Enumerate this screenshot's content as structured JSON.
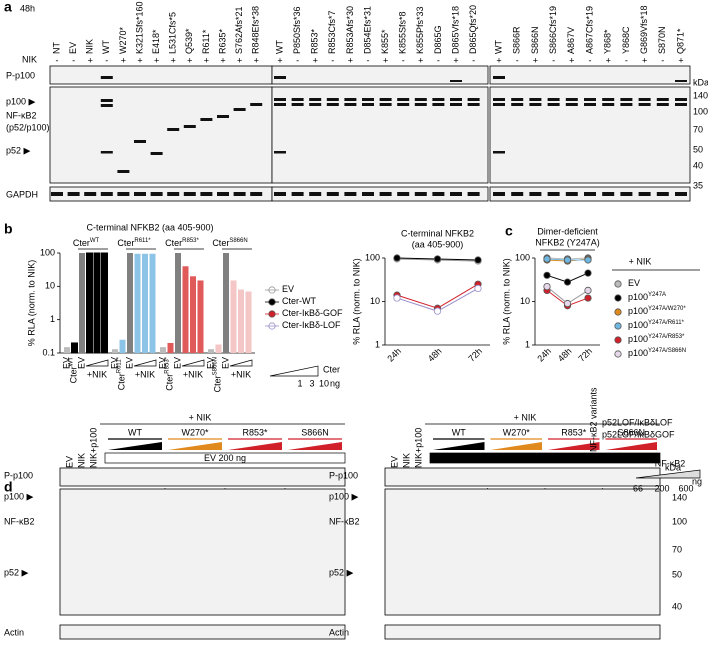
{
  "panel_labels": [
    "a",
    "b",
    "c",
    "d"
  ],
  "a": {
    "timepoint": "48h",
    "nik_label": "NIK",
    "groups": [
      {
        "lanes": [
          {
            "label": "NT",
            "color": "#000000"
          },
          {
            "label": "EV",
            "color": "#000000"
          },
          {
            "label": "NIK",
            "color": "#000000"
          },
          {
            "label": "WT",
            "color": "#000000"
          },
          {
            "label": "W270*",
            "color": "#e08a1e"
          },
          {
            "label": "K321Sfs*160",
            "color": "#e08a1e"
          },
          {
            "label": "E418*",
            "color": "#1fb3c9"
          },
          {
            "label": "L531Cfs*5",
            "color": "#1fb3c9"
          },
          {
            "label": "Q539*",
            "color": "#1fb3c9"
          },
          {
            "label": "R611*",
            "color": "#1fb3c9"
          },
          {
            "label": "R635*",
            "color": "#1fb3c9"
          },
          {
            "label": "S762Afs*21",
            "color": "#d0212a"
          },
          {
            "label": "R848Efs*38",
            "color": "#d0212a"
          }
        ],
        "nik": [
          "-",
          "-",
          "+",
          "-",
          "+",
          "+",
          "+",
          "+",
          "+",
          "+",
          "+",
          "+",
          "+"
        ]
      },
      {
        "lanes": [
          {
            "label": "WT",
            "color": "#000000"
          },
          {
            "label": "P850Sfs*36",
            "color": "#d0212a"
          },
          {
            "label": "R853*",
            "color": "#d0212a"
          },
          {
            "label": "R853Cfs*7",
            "color": "#d0212a"
          },
          {
            "label": "R853Afs*30",
            "color": "#d0212a"
          },
          {
            "label": "D854Efs*31",
            "color": "#d0212a"
          },
          {
            "label": "K855*",
            "color": "#d0212a"
          },
          {
            "label": "K855Sfs*8",
            "color": "#d0212a"
          },
          {
            "label": "K855Pfs*33",
            "color": "#d0212a"
          },
          {
            "label": "D865G",
            "color": "#d0212a"
          },
          {
            "label": "D865Vfs*18",
            "color": "#d0212a"
          },
          {
            "label": "D865Qfs*20",
            "color": "#d0212a"
          }
        ],
        "nik": [
          "+",
          "-",
          "+",
          "-",
          "+",
          "-",
          "+",
          "-",
          "+",
          "-",
          "+",
          "-"
        ]
      },
      {
        "lanes": [
          {
            "label": "WT",
            "color": "#000000"
          },
          {
            "label": "S866R",
            "color": "#d0212a"
          },
          {
            "label": "S866N",
            "color": "#d0212a"
          },
          {
            "label": "S866Cfs*19",
            "color": "#d0212a"
          },
          {
            "label": "A867V",
            "color": "#d0212a"
          },
          {
            "label": "A867Cfs*19",
            "color": "#d0212a"
          },
          {
            "label": "Y868*",
            "color": "#d0212a"
          },
          {
            "label": "Y868C",
            "color": "#d0212a"
          },
          {
            "label": "G869Vfs*18",
            "color": "#d0212a"
          },
          {
            "label": "S870N",
            "color": "#d0212a"
          },
          {
            "label": "Q871*",
            "color": "#d0212a"
          }
        ],
        "nik": [
          "+",
          "-",
          "+",
          "-",
          "+",
          "-",
          "+",
          "-",
          "+",
          "-",
          "+"
        ]
      }
    ],
    "rows": [
      "P-p100",
      "p100 ▶",
      "NF-κB2",
      "(p52/p100)",
      "p52 ▶",
      "GAPDH"
    ],
    "kda": "kDa",
    "markers": [
      140,
      100,
      70,
      50,
      40,
      35
    ]
  },
  "chart_data": [
    {
      "type": "bar",
      "title": "C-terminal NFKB2 (aa 405-900)",
      "ylabel": "% RLA (norm. to NIK)",
      "log": true,
      "ylim": [
        0.1,
        100
      ],
      "yticks": [
        0.1,
        1,
        10,
        100
      ],
      "groups": [
        {
          "name": "Cter",
          "sup": "WT",
          "color": "#000000"
        },
        {
          "name": "Cter",
          "sup": "R611*",
          "color": "#2aa3d8"
        },
        {
          "name": "Cter",
          "sup": "R853*",
          "color": "#d0212a"
        },
        {
          "name": "Cter",
          "sup": "S866N",
          "color": "#d0212a"
        }
      ],
      "group_label": "+NIK",
      "categories": [
        "EV",
        null,
        "EV",
        null,
        null,
        null,
        "EV",
        null,
        "EV",
        null,
        null,
        null,
        "EV",
        null,
        "EV",
        null,
        null,
        null,
        "EV",
        null,
        "EV",
        null,
        null,
        null
      ],
      "values": [
        0.15,
        0.2,
        100,
        100,
        100,
        100,
        0.13,
        0.25,
        100,
        95,
        95,
        95,
        0.15,
        0.2,
        100,
        40,
        20,
        15,
        0.13,
        0.18,
        100,
        15,
        8,
        7
      ],
      "colors": [
        "#bbbbbb",
        "#000000",
        "#808080",
        "#000000",
        "#000000",
        "#000000",
        "#bbbbbb",
        "#8cc4e8",
        "#808080",
        "#8cc4e8",
        "#8cc4e8",
        "#8cc4e8",
        "#bbbbbb",
        "#e05a5a",
        "#808080",
        "#e05a5a",
        "#e05a5a",
        "#e05a5a",
        "#bbbbbb",
        "#f5c6c6",
        "#808080",
        "#f5c6c6",
        "#f5c6c6",
        "#f5c6c6"
      ],
      "dose_legend": {
        "title": "Cter",
        "doses": [
          1,
          3,
          10
        ],
        "unit": "ng"
      }
    },
    {
      "type": "line",
      "title": "C-terminal NFKB2",
      "subtitle": "(aa 405-900)",
      "ylabel": "% RLA (norm. to NIK)",
      "log": true,
      "categories": [
        "24h",
        "48h",
        "72h"
      ],
      "ylim": [
        1,
        100
      ],
      "yticks": [
        1,
        10,
        100
      ],
      "series": [
        {
          "name": "EV",
          "color": "#999999",
          "open": true,
          "values": [
            95,
            90,
            85
          ]
        },
        {
          "name": "Cter-WT",
          "color": "#000000",
          "open": false,
          "values": [
            100,
            95,
            90
          ]
        },
        {
          "name": "Cter-IκBδ-GOF",
          "color": "#d0212a",
          "open": false,
          "values": [
            14,
            7,
            25
          ]
        },
        {
          "name": "Cter-IκBδ-LOF",
          "color": "#9b8fc8",
          "open": true,
          "values": [
            12,
            6,
            20
          ]
        }
      ]
    },
    {
      "type": "line",
      "title": "Dimer-deficient",
      "subtitle": "NFKB2 (Y247A)",
      "ylabel": "% RLA (norm. to NIK)",
      "log": true,
      "categories": [
        "24h",
        "48h",
        "72h"
      ],
      "ylim": [
        1,
        100
      ],
      "yticks": [
        1,
        10,
        100
      ],
      "legend_title": "+ NIK",
      "series": [
        {
          "name": "EV",
          "color": "#bbbbbb",
          "values": [
            100,
            95,
            100
          ]
        },
        {
          "name": "p100",
          "sup": "Y247A",
          "color": "#000000",
          "values": [
            40,
            28,
            45
          ]
        },
        {
          "name": "p100",
          "sup": "Y247A/W270*",
          "color": "#e08a1e",
          "values": [
            90,
            85,
            95
          ]
        },
        {
          "name": "p100",
          "sup": "Y247A/R611*",
          "color": "#6fb7e0",
          "values": [
            95,
            90,
            90
          ]
        },
        {
          "name": "p100",
          "sup": "Y247A/R853*",
          "color": "#d0212a",
          "values": [
            18,
            8,
            12
          ]
        },
        {
          "name": "p100",
          "sup": "Y247A/S866N",
          "color": "#e6d8ea",
          "values": [
            22,
            9,
            18
          ]
        }
      ]
    }
  ],
  "d": {
    "nik": "+ NIK",
    "lanes": [
      "EV",
      "NIK",
      "NIK+p100"
    ],
    "groups": [
      {
        "label": "WT",
        "color": "#000000"
      },
      {
        "label": "W270*",
        "color": "#e08a1e"
      },
      {
        "label": "R853*",
        "color": "#d0212a"
      },
      {
        "label": "S866N",
        "color": "#d0212a"
      }
    ],
    "left_box": "EV 200 ng",
    "right_box": "p100 200 ng",
    "rows": [
      "P-p100",
      "p100 ▶",
      "NF-κB2",
      "p52 ▶",
      "Actin"
    ],
    "kda": "kDa",
    "markers": [
      140,
      100,
      70,
      50,
      40
    ],
    "legend": {
      "title": "NF-κB2 variants",
      "items": [
        {
          "text": "p52LOF/IκBδLOF",
          "color": "#e08a1e"
        },
        {
          "text": "p52LOF/IκBδGOF",
          "color": "#d0212a"
        }
      ],
      "wedge": "NF-κB2",
      "doses": [
        66,
        200,
        600
      ],
      "unit": "ng"
    }
  }
}
